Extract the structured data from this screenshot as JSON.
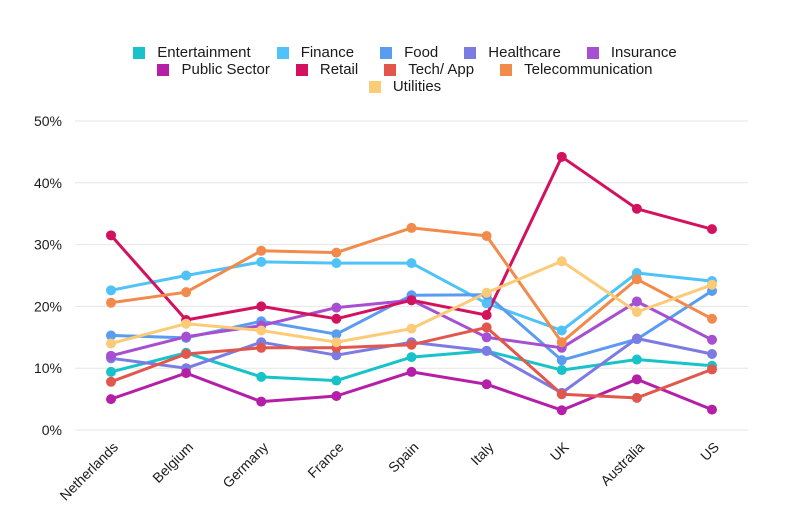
{
  "chart_data": {
    "type": "line",
    "categories": [
      "Netherlands",
      "Belgium",
      "Germany",
      "France",
      "Spain",
      "Italy",
      "UK",
      "Australia",
      "US"
    ],
    "ylim": [
      0,
      50
    ],
    "yticks": [
      "0%",
      "10%",
      "20%",
      "30%",
      "40%",
      "50%"
    ],
    "ytick_values": [
      0,
      10,
      20,
      30,
      40,
      50
    ],
    "grid": true,
    "legend_position": "top",
    "series": [
      {
        "name": "Entertainment",
        "color": "#17c3c9",
        "values": [
          9.4,
          12.5,
          8.6,
          8.0,
          11.8,
          12.8,
          9.7,
          11.4,
          10.4
        ]
      },
      {
        "name": "Finance",
        "color": "#4fc3f7",
        "values": [
          22.6,
          25.0,
          27.2,
          27.0,
          27.0,
          20.5,
          16.1,
          25.4,
          24.1
        ]
      },
      {
        "name": "Food",
        "color": "#5a9cf0",
        "values": [
          15.3,
          14.9,
          17.6,
          15.5,
          21.8,
          21.9,
          11.3,
          14.7,
          22.5
        ]
      },
      {
        "name": "Healthcare",
        "color": "#7b7be3",
        "values": [
          11.6,
          10.0,
          14.2,
          12.1,
          14.2,
          12.8,
          6.0,
          14.8,
          12.3
        ]
      },
      {
        "name": "Insurance",
        "color": "#a64fd1",
        "values": [
          12.0,
          15.1,
          16.9,
          19.8,
          21.0,
          15.0,
          13.3,
          20.8,
          14.6
        ]
      },
      {
        "name": "Public Sector",
        "color": "#b51fa8",
        "values": [
          5.0,
          9.2,
          4.6,
          5.5,
          9.4,
          7.4,
          3.2,
          8.2,
          3.3
        ]
      },
      {
        "name": "Retail",
        "color": "#d3125f",
        "values": [
          31.5,
          17.8,
          20.0,
          18.0,
          21.0,
          18.6,
          44.2,
          35.8,
          32.5
        ]
      },
      {
        "name": "Tech/ App",
        "color": "#e2574c",
        "values": [
          7.8,
          12.3,
          13.3,
          13.3,
          13.8,
          16.6,
          5.8,
          5.2,
          9.8
        ]
      },
      {
        "name": "Telecommunication",
        "color": "#f28a4c",
        "values": [
          20.6,
          22.3,
          29.0,
          28.7,
          32.7,
          31.4,
          14.2,
          24.4,
          18.0
        ]
      },
      {
        "name": "Utilities",
        "color": "#fccb78",
        "values": [
          14.0,
          17.2,
          16.1,
          14.2,
          16.4,
          22.2,
          27.3,
          19.1,
          23.5
        ]
      }
    ]
  }
}
